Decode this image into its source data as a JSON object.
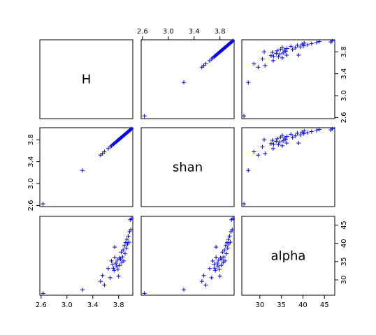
{
  "chart_data": {
    "type": "scatter",
    "title": "",
    "point_color": "#0000ff",
    "point_symbol": "+",
    "variables": [
      {
        "key": "H",
        "label": "H",
        "range": [
          2.58,
          4.02
        ],
        "ticks": [
          2.6,
          3.0,
          3.4,
          3.8
        ],
        "tick_labels": [
          "2.6",
          "3.0",
          "3.4",
          "3.8"
        ]
      },
      {
        "key": "shan",
        "label": "shan",
        "range": [
          2.58,
          4.02
        ],
        "ticks": [
          2.6,
          3.0,
          3.4,
          3.8
        ],
        "tick_labels": [
          "2.6",
          "3.0",
          "3.4",
          "3.8"
        ]
      },
      {
        "key": "alpha",
        "label": "alpha",
        "range": [
          25.8,
          47.4
        ],
        "ticks": [
          30,
          35,
          40,
          45
        ],
        "tick_labels": [
          "30",
          "35",
          "40",
          "45"
        ]
      }
    ],
    "observations": [
      [
        2.63,
        26.3
      ],
      [
        3.24,
        27.3
      ],
      [
        3.52,
        29.6
      ],
      [
        3.55,
        31.2
      ],
      [
        3.58,
        28.6
      ],
      [
        3.64,
        33.1
      ],
      [
        3.67,
        30.6
      ],
      [
        3.69,
        35.2
      ],
      [
        3.71,
        34.3
      ],
      [
        3.72,
        33.2
      ],
      [
        3.73,
        32.6
      ],
      [
        3.74,
        36.2
      ],
      [
        3.74,
        39.0
      ],
      [
        3.76,
        34.6
      ],
      [
        3.77,
        33.8
      ],
      [
        3.78,
        35.4
      ],
      [
        3.79,
        32.9
      ],
      [
        3.8,
        31.0
      ],
      [
        3.81,
        36.0
      ],
      [
        3.82,
        34.0
      ],
      [
        3.83,
        35.7
      ],
      [
        3.84,
        37.6
      ],
      [
        3.85,
        34.8
      ],
      [
        3.86,
        36.3
      ],
      [
        3.87,
        38.2
      ],
      [
        3.88,
        35.2
      ],
      [
        3.89,
        39.4
      ],
      [
        3.9,
        37.2
      ],
      [
        3.91,
        40.2
      ],
      [
        3.92,
        38.7
      ],
      [
        3.93,
        41.1
      ],
      [
        3.94,
        39.8
      ],
      [
        3.95,
        42.0
      ],
      [
        3.96,
        40.3
      ],
      [
        3.97,
        43.2
      ],
      [
        3.98,
        46.5
      ],
      [
        3.99,
        43.8
      ],
      [
        4.0,
        46.8
      ]
    ]
  }
}
